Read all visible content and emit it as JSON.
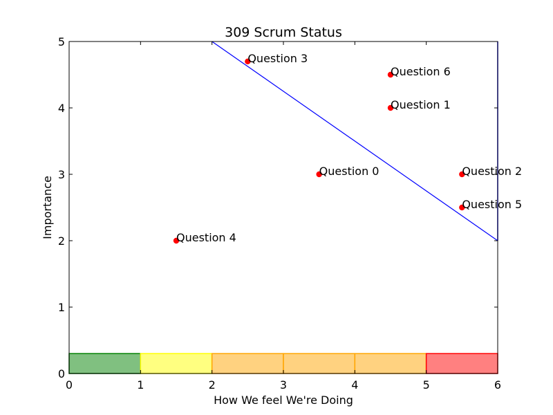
{
  "chart_data": {
    "type": "scatter",
    "title": "309 Scrum Status",
    "xlabel": "How We feel We're Doing",
    "ylabel": "Importance",
    "xlim": [
      0,
      6
    ],
    "ylim": [
      0,
      5
    ],
    "xticks": [
      0,
      1,
      2,
      3,
      4,
      5,
      6
    ],
    "yticks": [
      0,
      1,
      2,
      3,
      4,
      5
    ],
    "grid": false,
    "points": [
      {
        "label": "Question 0",
        "x": 3.5,
        "y": 3.0
      },
      {
        "label": "Question 1",
        "x": 4.5,
        "y": 4.0
      },
      {
        "label": "Question 2",
        "x": 5.5,
        "y": 3.0
      },
      {
        "label": "Question 3",
        "x": 2.5,
        "y": 4.7
      },
      {
        "label": "Question 4",
        "x": 1.5,
        "y": 2.0
      },
      {
        "label": "Question 5",
        "x": 5.5,
        "y": 2.5
      },
      {
        "label": "Question 6",
        "x": 4.5,
        "y": 4.5
      }
    ],
    "point_color": "#ff0000",
    "line": {
      "x": [
        2,
        6
      ],
      "y": [
        5,
        2
      ],
      "color": "#0000ff"
    },
    "bands": [
      {
        "x0": 0,
        "x1": 1,
        "y0": 0,
        "y1": 0.3,
        "fill": "#80c080",
        "stroke": "#008000"
      },
      {
        "x0": 1,
        "x1": 2,
        "y0": 0,
        "y1": 0.3,
        "fill": "#ffff80",
        "stroke": "#ffff00"
      },
      {
        "x0": 2,
        "x1": 3,
        "y0": 0,
        "y1": 0.3,
        "fill": "#ffd280",
        "stroke": "#ffa500"
      },
      {
        "x0": 3,
        "x1": 4,
        "y0": 0,
        "y1": 0.3,
        "fill": "#ffd280",
        "stroke": "#ffa500"
      },
      {
        "x0": 4,
        "x1": 5,
        "y0": 0,
        "y1": 0.3,
        "fill": "#ffd280",
        "stroke": "#ffa500"
      },
      {
        "x0": 5,
        "x1": 6,
        "y0": 0,
        "y1": 0.3,
        "fill": "#ff8080",
        "stroke": "#ff0000"
      }
    ]
  }
}
